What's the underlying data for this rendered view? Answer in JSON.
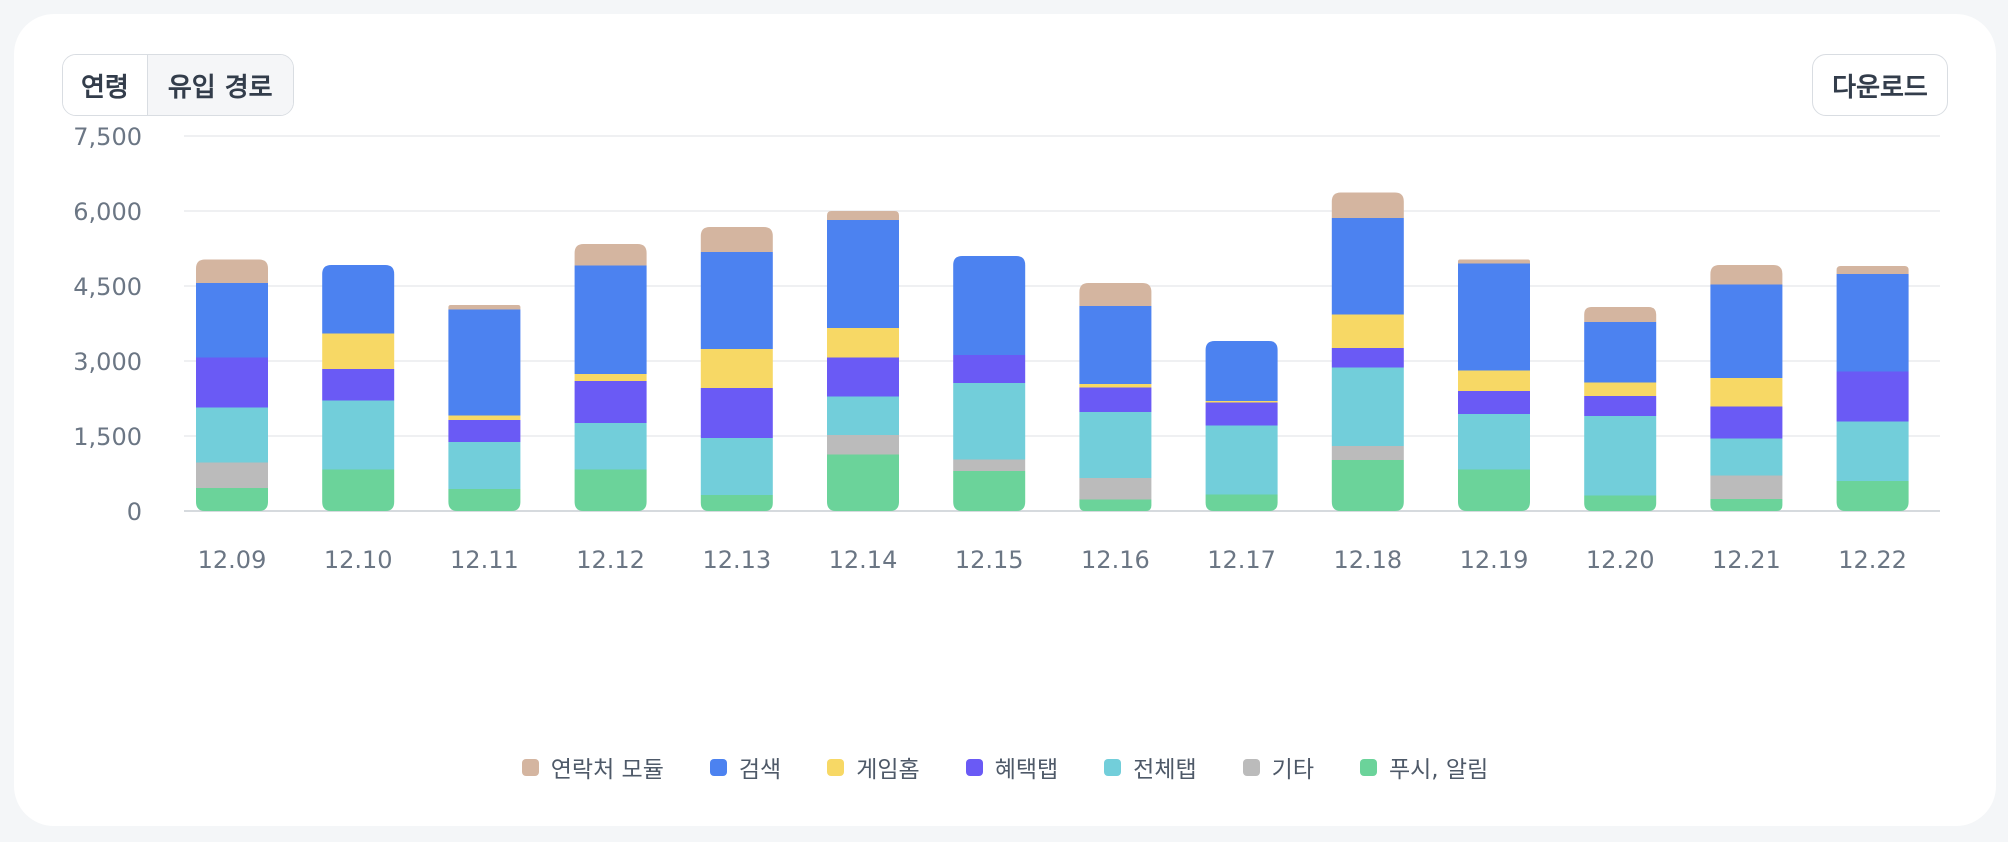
{
  "controls": {
    "segment_tabs": [
      {
        "label": "연령",
        "active": true
      },
      {
        "label": "유입 경로",
        "active": false
      }
    ],
    "download_label": "다운로드"
  },
  "colors": {
    "연락처 모듈": "#d4b5a0",
    "검색": "#4c82f0",
    "게임홈": "#f7d865",
    "혜택탭": "#6a5af5",
    "전체탭": "#72ceda",
    "기타": "#bbbbbb",
    "푸시, 알림": "#6bd39a"
  },
  "chart_data": {
    "type": "bar",
    "stacked": true,
    "categories": [
      "12.09",
      "12.10",
      "12.11",
      "12.12",
      "12.13",
      "12.14",
      "12.15",
      "12.16",
      "12.17",
      "12.18",
      "12.19",
      "12.20",
      "12.21",
      "12.22"
    ],
    "yticks": [
      "0",
      "1,500",
      "3,000",
      "4,500",
      "6,000",
      "7,500"
    ],
    "ylim": [
      0,
      7500
    ],
    "grid": true,
    "legend_position": "bottom",
    "series": [
      {
        "name": "푸시, 알림",
        "values": [
          460,
          830,
          440,
          830,
          320,
          1130,
          800,
          230,
          330,
          1020,
          830,
          310,
          240,
          600
        ]
      },
      {
        "name": "기타",
        "values": [
          510,
          0,
          0,
          0,
          0,
          390,
          230,
          430,
          0,
          280,
          0,
          0,
          470,
          0
        ]
      },
      {
        "name": "전체탭",
        "values": [
          1100,
          1380,
          940,
          930,
          1140,
          770,
          1530,
          1320,
          1380,
          1570,
          1110,
          1590,
          740,
          1190
        ]
      },
      {
        "name": "혜택탭",
        "values": [
          1000,
          630,
          440,
          840,
          1000,
          780,
          560,
          490,
          460,
          390,
          460,
          400,
          640,
          1000
        ]
      },
      {
        "name": "게임홈",
        "values": [
          0,
          710,
          90,
          140,
          780,
          590,
          0,
          70,
          30,
          670,
          410,
          270,
          570,
          0
        ]
      },
      {
        "name": "검색",
        "values": [
          1490,
          1370,
          2120,
          2170,
          1940,
          2160,
          1980,
          1560,
          1200,
          1930,
          2140,
          1210,
          1870,
          1950
        ]
      },
      {
        "name": "연락처 모듈",
        "values": [
          470,
          0,
          90,
          430,
          500,
          180,
          0,
          460,
          0,
          510,
          80,
          300,
          390,
          160
        ]
      }
    ]
  }
}
